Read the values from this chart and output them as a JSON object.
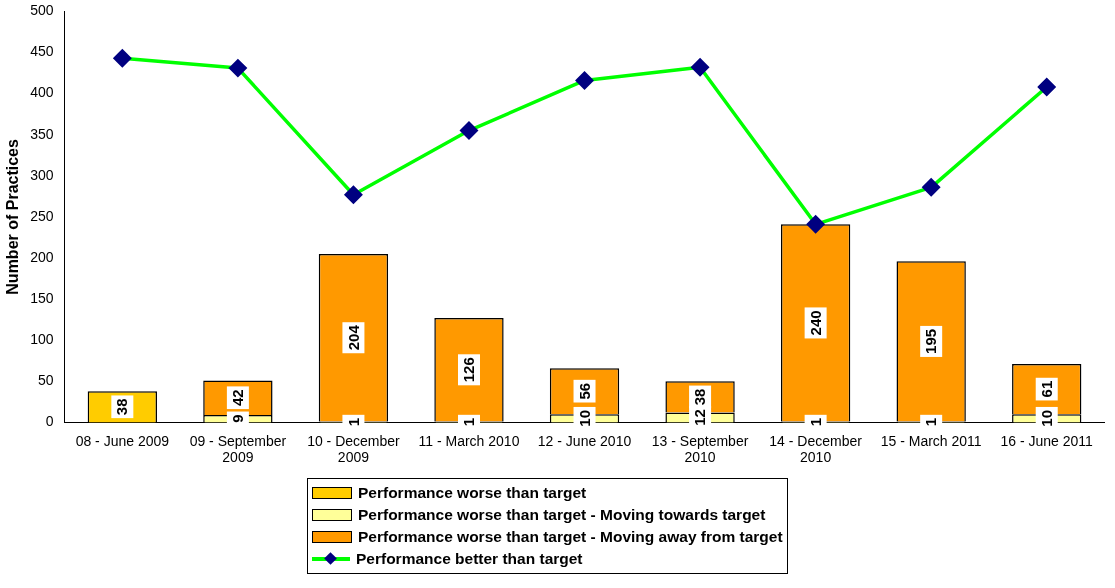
{
  "chart_data": {
    "type": "bar",
    "stacked": true,
    "ylabel": "Number of Practices",
    "categories": [
      "08 - June 2009",
      "09 - September 2009",
      "10 - December 2009",
      "11 - March 2010",
      "12 - June 2010",
      "13 - September 2010",
      "14 - December 2010",
      "15 - March 2011",
      "16 - June 2011"
    ],
    "series": [
      {
        "name": "Performance worse than target",
        "color": "#ffcc00",
        "values": [
          38,
          null,
          null,
          null,
          null,
          null,
          null,
          null,
          null
        ],
        "value_labels": [
          "38",
          null,
          null,
          null,
          null,
          null,
          null,
          null,
          null
        ]
      },
      {
        "name": "Performance worse than target -  Moving towards target",
        "color": "#ffff99",
        "values": [
          null,
          9,
          1,
          1,
          10,
          12,
          1,
          1,
          10
        ],
        "value_labels": [
          null,
          "9",
          "1",
          "1",
          "10",
          "12",
          "1",
          "1",
          "10"
        ]
      },
      {
        "name": "Performance worse than target -  Moving away from target",
        "color": "#ff9900",
        "values": [
          null,
          42,
          204,
          126,
          56,
          38,
          240,
          195,
          61
        ],
        "value_labels": [
          null,
          "42",
          "204",
          "126",
          "56",
          "38",
          "240",
          "195",
          "61"
        ]
      },
      {
        "name": "Performance better than target",
        "type": "line",
        "color": "#00ff00",
        "marker": "diamond",
        "values": [
          443,
          431,
          277,
          355,
          416,
          432,
          241,
          286,
          408
        ]
      }
    ],
    "ylim": [
      0,
      500
    ],
    "yticks": [
      0,
      50,
      100,
      150,
      200,
      250,
      300,
      350,
      400,
      450,
      500
    ],
    "grid": false,
    "legend": "bottom"
  }
}
